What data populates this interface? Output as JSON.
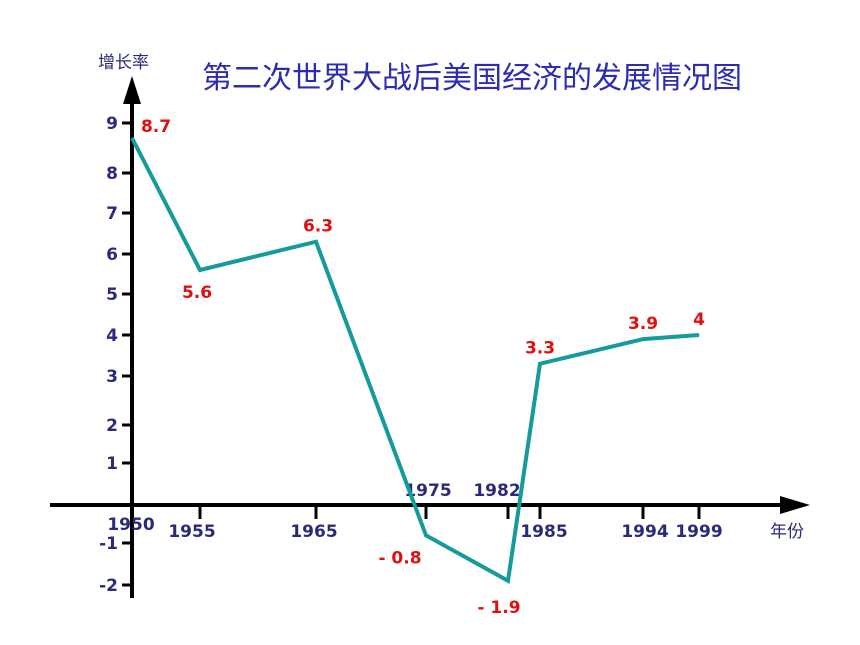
{
  "chart_data": {
    "type": "line",
    "title": "第二次世界大战后美国经济的发展情况图",
    "xlabel": "年份",
    "ylabel": "增长率",
    "x": [
      1950,
      1955,
      1965,
      1975,
      1982,
      1985,
      1994,
      1999
    ],
    "x_tick_labels": [
      "1950",
      "1955",
      "1965",
      "1975",
      "1982",
      "1985",
      "1994",
      "1999"
    ],
    "y_tick_labels": [
      "9",
      "8",
      "7",
      "6",
      "5",
      "4",
      "3",
      "2",
      "1",
      "-1",
      "-2"
    ],
    "y_ticks": [
      9,
      8,
      7,
      6,
      5,
      4,
      3,
      2,
      1,
      -1,
      -2
    ],
    "ylim": [
      -2,
      9
    ],
    "series": [
      {
        "points": [
          {
            "x": 1950,
            "y": 8.7,
            "label": "8.7"
          },
          {
            "x": 1955,
            "y": 5.6,
            "label": "5.6"
          },
          {
            "x": 1965,
            "y": 6.3,
            "label": "6.3"
          },
          {
            "x": 1975,
            "y": -0.8,
            "label": "- 0.8"
          },
          {
            "x": 1982,
            "y": -1.9,
            "label": "- 1.9"
          },
          {
            "x": 1985,
            "y": 3.3,
            "label": "3.3"
          },
          {
            "x": 1994,
            "y": 3.9,
            "label": "3.9"
          },
          {
            "x": 1999,
            "y": 4,
            "label": "4"
          }
        ]
      }
    ],
    "grid": false,
    "colors": {
      "line": "#159b9b",
      "axis": "#000000",
      "data_label": "#e01010",
      "tick_text": "#2a2a7a",
      "title": "#2b2bb3"
    }
  }
}
